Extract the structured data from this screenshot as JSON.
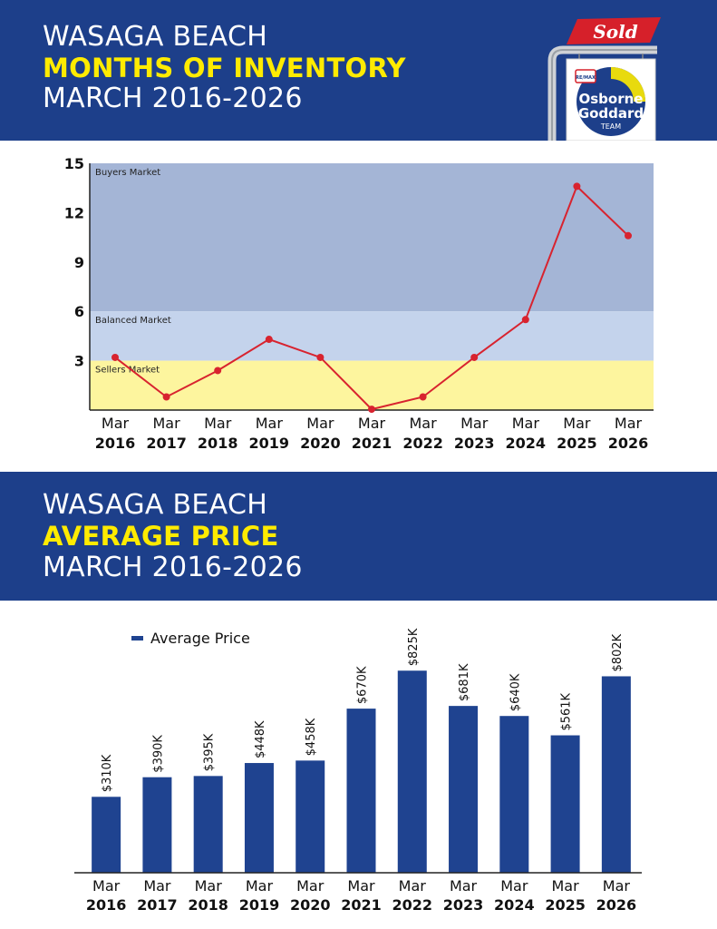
{
  "banner1": {
    "line1": "WASAGA BEACH",
    "line2": "MONTHS OF INVENTORY",
    "line3": "MARCH 2016-2026"
  },
  "banner2": {
    "line1": "WASAGA BEACH",
    "line2": "AVERAGE PRICE",
    "line3": "MARCH 2016-2026"
  },
  "logo": {
    "sold_text": "Sold",
    "brand_line1": "Osborne",
    "brand_line2": "Goddard",
    "brand_line3": "TEAM",
    "remax_text": "RE/MAX"
  },
  "colors": {
    "banner_blue": "#1d3f8a",
    "highlight_yellow": "#ffeb00",
    "buyers_zone": "#a4b5d6",
    "balanced_zone": "#c4d3ec",
    "sellers_zone": "#fdf59e",
    "line_red": "#d8232f",
    "bar_blue": "#1f4390",
    "sold_red": "#d6202a"
  },
  "chart_data": [
    {
      "type": "line",
      "title": "MONTHS OF INVENTORY",
      "categories": [
        [
          "Mar",
          "2016"
        ],
        [
          "Mar",
          "2017"
        ],
        [
          "Mar",
          "2018"
        ],
        [
          "Mar",
          "2019"
        ],
        [
          "Mar",
          "2020"
        ],
        [
          "Mar",
          "2021"
        ],
        [
          "Mar",
          "2022"
        ],
        [
          "Mar",
          "2023"
        ],
        [
          "Mar",
          "2024"
        ],
        [
          "Mar",
          "2025"
        ],
        [
          "Mar",
          "2026"
        ]
      ],
      "values": [
        3.2,
        0.8,
        2.4,
        4.3,
        3.2,
        0.05,
        0.8,
        3.2,
        5.5,
        13.6,
        10.6
      ],
      "ylim": [
        0,
        15
      ],
      "yticks": [
        3,
        6,
        9,
        12,
        15
      ],
      "zones": [
        {
          "label": "Buyers Market",
          "from": 6,
          "to": 15
        },
        {
          "label": "Balanced Market",
          "from": 3,
          "to": 6
        },
        {
          "label": "Sellers Market",
          "from": 0,
          "to": 3
        }
      ],
      "grid": false
    },
    {
      "type": "bar",
      "title": "AVERAGE PRICE",
      "categories": [
        [
          "Mar",
          "2016"
        ],
        [
          "Mar",
          "2017"
        ],
        [
          "Mar",
          "2018"
        ],
        [
          "Mar",
          "2019"
        ],
        [
          "Mar",
          "2020"
        ],
        [
          "Mar",
          "2021"
        ],
        [
          "Mar",
          "2022"
        ],
        [
          "Mar",
          "2023"
        ],
        [
          "Mar",
          "2024"
        ],
        [
          "Mar",
          "2025"
        ],
        [
          "Mar",
          "2026"
        ]
      ],
      "series": [
        {
          "name": "Average Price",
          "values": [
            310000,
            390000,
            395000,
            448000,
            458000,
            670000,
            825000,
            681000,
            640000,
            561000,
            802000
          ],
          "labels": [
            "$310K",
            "$390K",
            "$395K",
            "$448K",
            "$458K",
            "$670K",
            "$825K",
            "$681K",
            "$640K",
            "$561K",
            "$802K"
          ]
        }
      ],
      "ylim": [
        0,
        1000000
      ],
      "legend": "top-left",
      "grid": false
    }
  ]
}
